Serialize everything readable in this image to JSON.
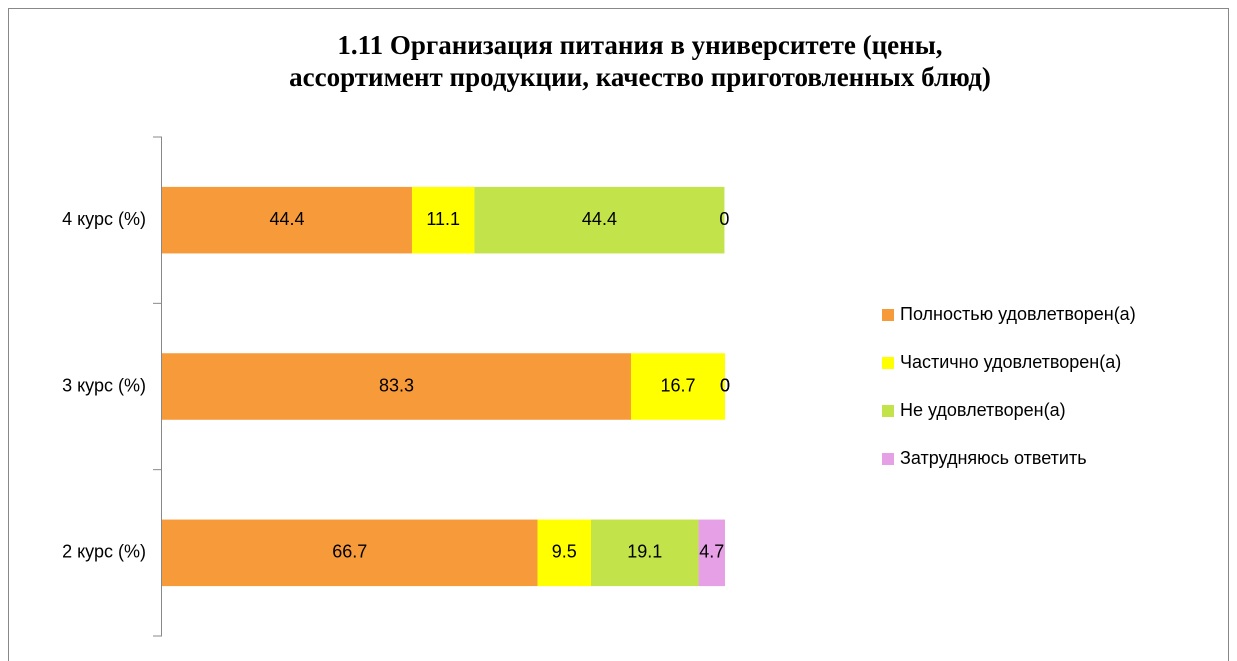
{
  "chart_data": {
    "type": "stacked-bar-horizontal",
    "title": [
      "1.11 Организация питания в университете (цены,",
      "ассортимент продукции, качество приготовленных блюд)"
    ],
    "categories": [
      "4 курс (%)",
      "3 курс (%)",
      "2 курс (%)"
    ],
    "series": [
      {
        "name": "Полностью удовлетворен(а)",
        "color": "#f79a3a",
        "values": [
          44.4,
          83.3,
          66.7
        ]
      },
      {
        "name": "Частично удовлетворен(а)",
        "color": "#ffff00",
        "values": [
          11.1,
          16.7,
          9.5
        ]
      },
      {
        "name": "Не удовлетворен(а)",
        "color": "#c2e34a",
        "values": [
          44.4,
          0,
          19.1
        ]
      },
      {
        "name": "Затрудняюсь ответить",
        "color": "#e6a0e6",
        "values": [
          0,
          0,
          4.7
        ]
      }
    ],
    "xlim": [
      0,
      100
    ],
    "legend": "right"
  }
}
